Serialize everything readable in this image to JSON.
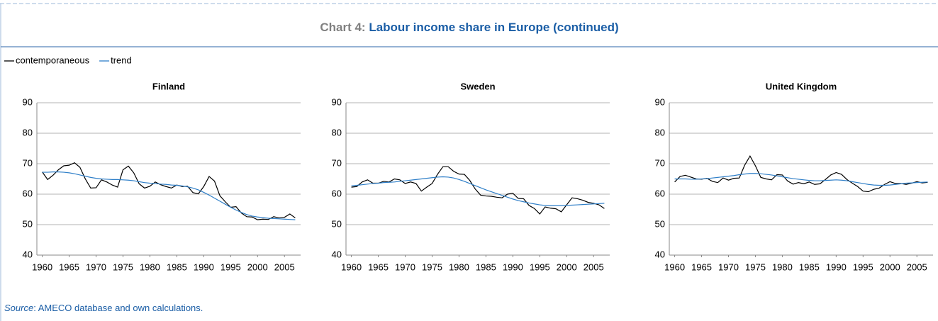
{
  "header": {
    "prefix": "Chart 4:",
    "title": "Labour income share in Europe (continued)"
  },
  "source": {
    "label": "Source",
    "text": ": AMECO database and own calculations."
  },
  "chart_data": [
    {
      "type": "line",
      "title": "Finland",
      "x": [
        1960,
        1961,
        1962,
        1963,
        1964,
        1965,
        1966,
        1967,
        1968,
        1969,
        1970,
        1971,
        1972,
        1973,
        1974,
        1975,
        1976,
        1977,
        1978,
        1979,
        1980,
        1981,
        1982,
        1983,
        1984,
        1985,
        1986,
        1987,
        1988,
        1989,
        1990,
        1991,
        1992,
        1993,
        1994,
        1995,
        1996,
        1997,
        1998,
        1999,
        2000,
        2001,
        2002,
        2003,
        2004,
        2005,
        2006,
        2007
      ],
      "xlim": [
        1959,
        2008
      ],
      "xticks": [
        1960,
        1965,
        1970,
        1975,
        1980,
        1985,
        1990,
        1995,
        2000,
        2005
      ],
      "ylim": [
        40,
        90
      ],
      "yticks": [
        40,
        50,
        60,
        70,
        80,
        90
      ],
      "grid": true,
      "series": [
        {
          "name": "contemporaneous",
          "color": "#000000",
          "values": [
            67.3,
            64.8,
            66.2,
            68,
            69.3,
            69.5,
            70.3,
            68.8,
            65,
            62,
            62.1,
            64.7,
            64,
            63,
            62.3,
            68,
            69.2,
            67,
            63.4,
            62,
            62.6,
            64,
            63.1,
            62.5,
            62,
            63,
            62.5,
            62.6,
            60.5,
            60.1,
            62.5,
            65.8,
            64.3,
            59.5,
            57.5,
            55.7,
            55.9,
            53.8,
            52.6,
            52.5,
            51.6,
            51.8,
            51.7,
            52.6,
            52.2,
            52.4,
            53.5,
            52.2
          ]
        },
        {
          "name": "trend",
          "color": "#2f7fc8",
          "values": [
            67.2,
            67.2,
            67.3,
            67.3,
            67.2,
            67.0,
            66.7,
            66.3,
            65.9,
            65.5,
            65.2,
            65.0,
            64.9,
            64.8,
            64.8,
            64.7,
            64.6,
            64.4,
            64.1,
            63.8,
            63.6,
            63.5,
            63.3,
            63.2,
            63.0,
            62.9,
            62.7,
            62.4,
            62.0,
            61.4,
            60.6,
            59.7,
            58.7,
            57.7,
            56.7,
            55.7,
            54.8,
            54.0,
            53.3,
            52.8,
            52.5,
            52.3,
            52.1,
            52.0,
            51.9,
            51.8,
            51.7,
            51.6
          ]
        }
      ]
    },
    {
      "type": "line",
      "title": "Sweden",
      "x": [
        1960,
        1961,
        1962,
        1963,
        1964,
        1965,
        1966,
        1967,
        1968,
        1969,
        1970,
        1971,
        1972,
        1973,
        1974,
        1975,
        1976,
        1977,
        1978,
        1979,
        1980,
        1981,
        1982,
        1983,
        1984,
        1985,
        1986,
        1987,
        1988,
        1989,
        1990,
        1991,
        1992,
        1993,
        1994,
        1995,
        1996,
        1997,
        1998,
        1999,
        2000,
        2001,
        2002,
        2003,
        2004,
        2005,
        2006,
        2007
      ],
      "xlim": [
        1959,
        2008
      ],
      "xticks": [
        1960,
        1965,
        1970,
        1975,
        1980,
        1985,
        1990,
        1995,
        2000,
        2005
      ],
      "ylim": [
        40,
        90
      ],
      "yticks": [
        40,
        50,
        60,
        70,
        80,
        90
      ],
      "grid": true,
      "series": [
        {
          "color": "#000000",
          "values": [
            62.3,
            62.5,
            64,
            64.7,
            63.6,
            63.6,
            64.2,
            64,
            65,
            64.7,
            63.5,
            64,
            63.5,
            61,
            62.3,
            63.5,
            66.5,
            69,
            69,
            67.5,
            66.6,
            66.5,
            64.5,
            61.7,
            59.7,
            59.4,
            59.3,
            59,
            58.8,
            60,
            60.3,
            58.6,
            58.5,
            56.3,
            55.3,
            53.5,
            55.8,
            55.4,
            55.2,
            54.2,
            56.5,
            58.8,
            58.5,
            58,
            57.3,
            57,
            56.5,
            55.3
          ]
        },
        {
          "color": "#2f7fc8",
          "values": [
            62.7,
            62.9,
            63.1,
            63.3,
            63.5,
            63.6,
            63.8,
            63.9,
            64.0,
            64.2,
            64.4,
            64.6,
            64.8,
            65.0,
            65.2,
            65.4,
            65.6,
            65.7,
            65.6,
            65.3,
            64.8,
            64.2,
            63.5,
            62.8,
            62.1,
            61.4,
            60.8,
            60.2,
            59.6,
            59.0,
            58.4,
            57.9,
            57.5,
            57.1,
            56.8,
            56.5,
            56.3,
            56.2,
            56.2,
            56.2,
            56.3,
            56.4,
            56.5,
            56.6,
            56.7,
            56.8,
            56.9,
            57.0
          ]
        }
      ]
    },
    {
      "type": "line",
      "title": "United Kingdom",
      "x": [
        1960,
        1961,
        1962,
        1963,
        1964,
        1965,
        1966,
        1967,
        1968,
        1969,
        1970,
        1971,
        1972,
        1973,
        1974,
        1975,
        1976,
        1977,
        1978,
        1979,
        1980,
        1981,
        1982,
        1983,
        1984,
        1985,
        1986,
        1987,
        1988,
        1989,
        1990,
        1991,
        1992,
        1993,
        1994,
        1995,
        1996,
        1997,
        1998,
        1999,
        2000,
        2001,
        2002,
        2003,
        2004,
        2005,
        2006,
        2007
      ],
      "xlim": [
        1959,
        2008
      ],
      "xticks": [
        1960,
        1965,
        1970,
        1975,
        1980,
        1985,
        1990,
        1995,
        2000,
        2005
      ],
      "ylim": [
        40,
        90
      ],
      "yticks": [
        40,
        50,
        60,
        70,
        80,
        90
      ],
      "grid": true,
      "series": [
        {
          "color": "#000000",
          "values": [
            64,
            65.8,
            66.2,
            65.6,
            65,
            64.9,
            65.2,
            64.2,
            63.8,
            65.3,
            64.6,
            65.2,
            65.3,
            69.5,
            72.5,
            69.3,
            65.5,
            65,
            64.7,
            66.4,
            66.3,
            64.3,
            63.3,
            63.8,
            63.4,
            64,
            63.2,
            63.4,
            64.8,
            66.3,
            67.1,
            66.5,
            64.8,
            63.6,
            62.5,
            61,
            60.8,
            61.6,
            62,
            63.2,
            64.1,
            63.5,
            63.5,
            63.2,
            63.6,
            64.1,
            63.7,
            63.9
          ]
        },
        {
          "color": "#2f7fc8",
          "values": [
            65.0,
            65.0,
            65.0,
            64.9,
            64.9,
            65.0,
            65.1,
            65.3,
            65.5,
            65.7,
            65.9,
            66.1,
            66.4,
            66.6,
            66.8,
            66.8,
            66.7,
            66.5,
            66.3,
            66.0,
            65.7,
            65.4,
            65.1,
            64.9,
            64.7,
            64.5,
            64.4,
            64.4,
            64.5,
            64.6,
            64.7,
            64.6,
            64.4,
            64.1,
            63.8,
            63.5,
            63.2,
            63.0,
            62.9,
            62.9,
            63.0,
            63.2,
            63.4,
            63.6,
            63.7,
            63.8,
            63.9,
            64.0
          ]
        }
      ]
    }
  ]
}
